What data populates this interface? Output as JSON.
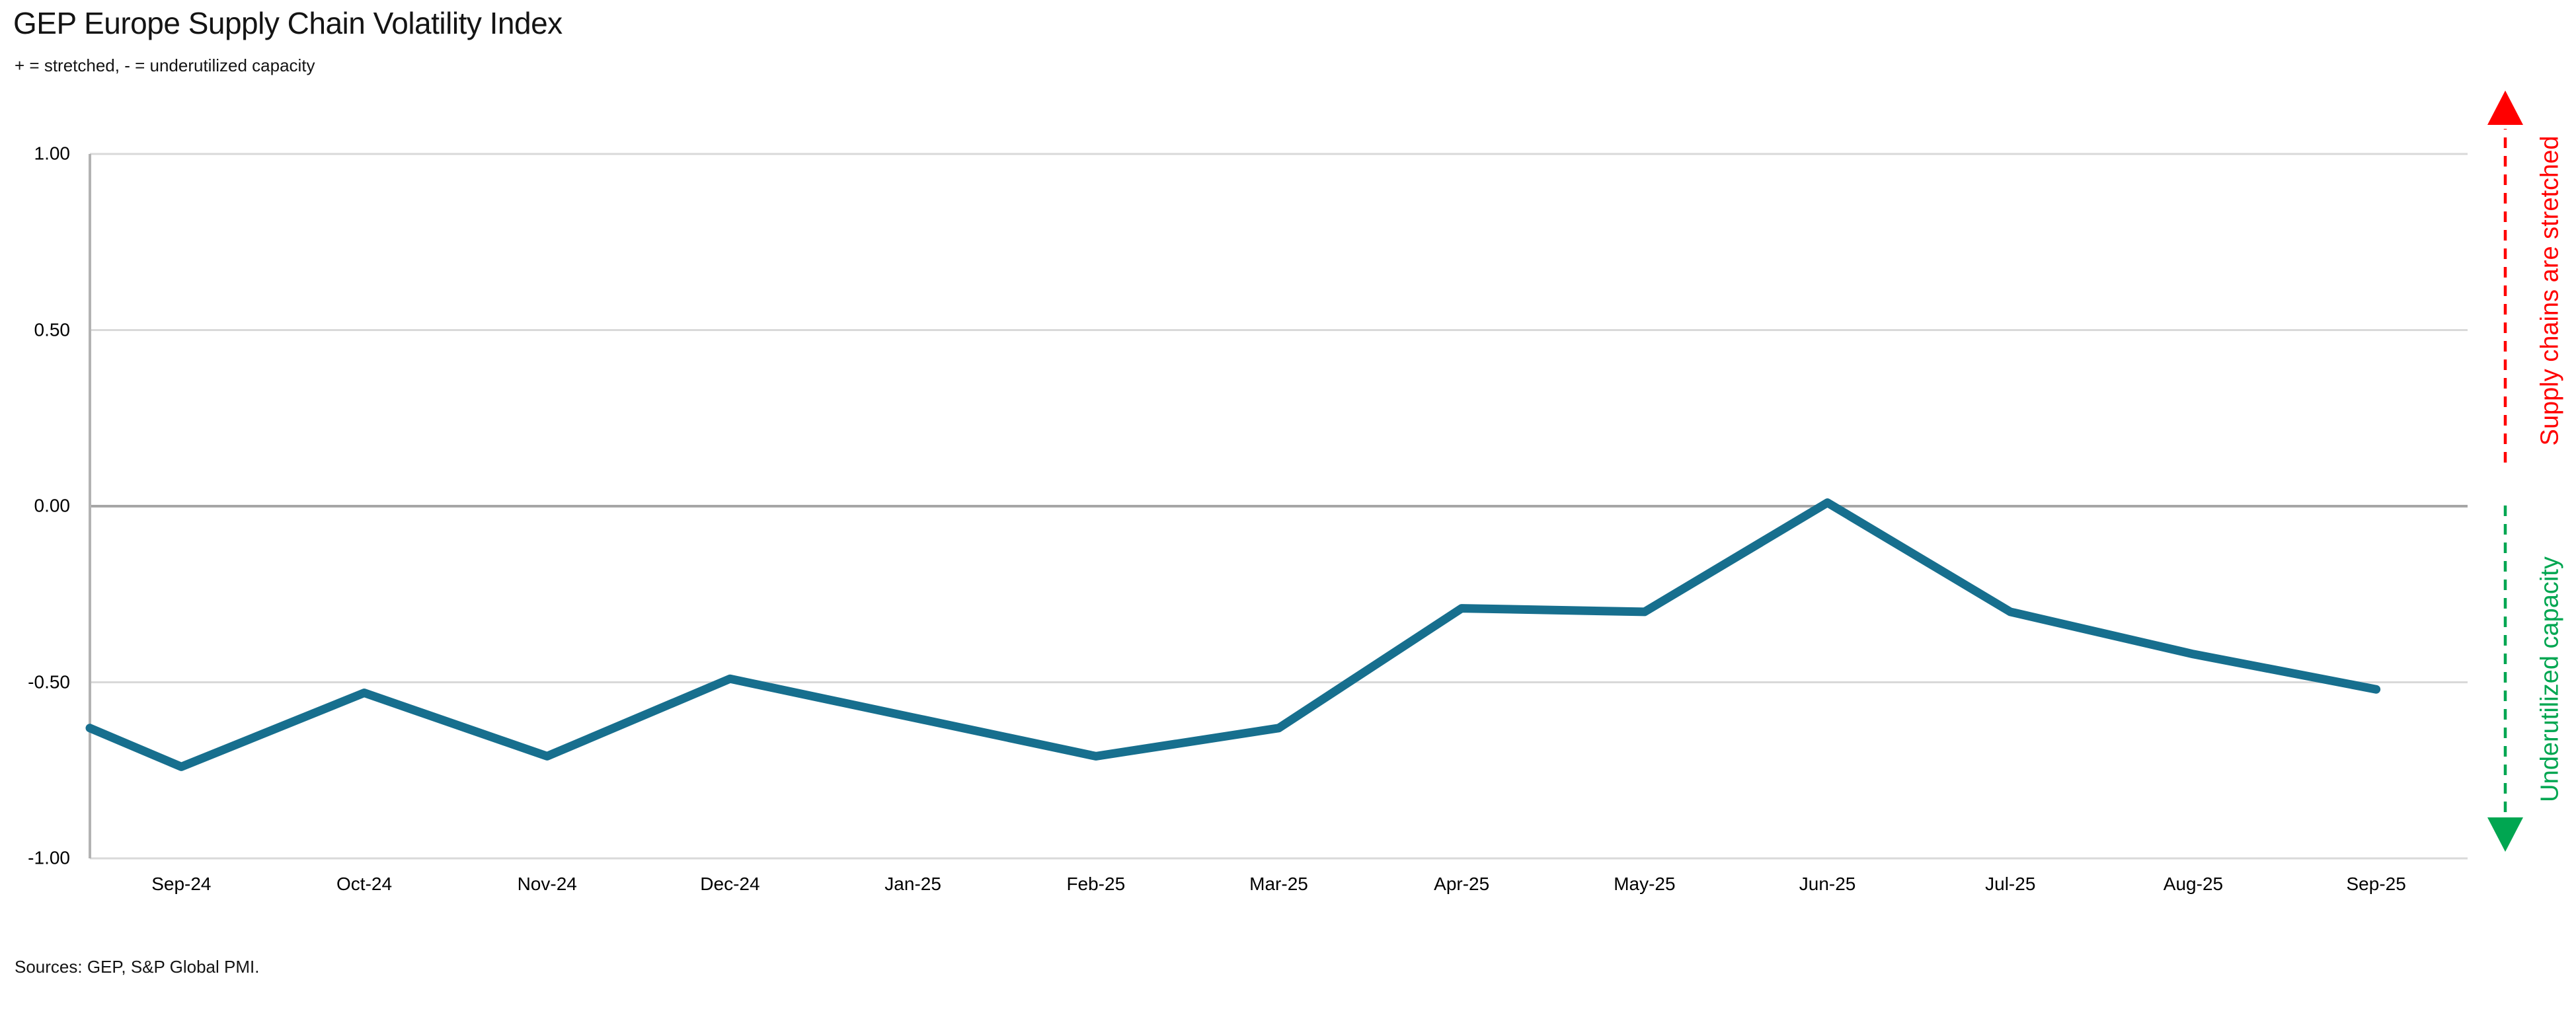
{
  "title": "GEP Europe Supply Chain Volatility Index",
  "subtitle": "+ = stretched, - = underutilized capacity",
  "sources": "Sources: GEP, S&P Global PMI.",
  "annotations": {
    "stretched": {
      "label": "Supply chains are stretched",
      "color": "#ff0000",
      "direction": "up"
    },
    "underutilized": {
      "label": "Underutilized capacity",
      "color": "#00a651",
      "direction": "down"
    }
  },
  "colors": {
    "line": "#176f8e",
    "gridline": "#d9d9d9",
    "zero_line": "#a6a6a6",
    "axis_line": "#b3b3b3",
    "text": "#000000",
    "stretched_red": "#ff0000",
    "underutilized_green": "#00a651",
    "background": "#ffffff"
  },
  "chart_data": {
    "type": "line",
    "title": "GEP Europe Supply Chain Volatility Index",
    "subtitle": "+ = stretched, - = underutilized capacity",
    "x": [
      "Sep-24",
      "Oct-24",
      "Nov-24",
      "Dec-24",
      "Jan-25",
      "Feb-25",
      "Mar-25",
      "Apr-25",
      "May-25",
      "Jun-25",
      "Jul-25",
      "Aug-25",
      "Sep-25"
    ],
    "values": [
      -0.74,
      -0.53,
      -0.71,
      -0.49,
      -0.6,
      -0.71,
      -0.63,
      -0.29,
      -0.3,
      0.01,
      -0.3,
      -0.42,
      -0.52
    ],
    "left_edge_start_value": -0.63,
    "ylim": [
      -1.0,
      1.0
    ],
    "y_ticks": [
      1.0,
      0.5,
      0.0,
      -0.5,
      -1.0
    ],
    "y_tick_labels": [
      "1.00",
      "0.50",
      "0.00",
      "-0.50",
      "-1.00"
    ],
    "grid": "horizontal gridlines at 0.50 intervals, zero line emphasized",
    "legend": "none",
    "line_color": "#176f8e",
    "xlabel": "",
    "ylabel": ""
  }
}
